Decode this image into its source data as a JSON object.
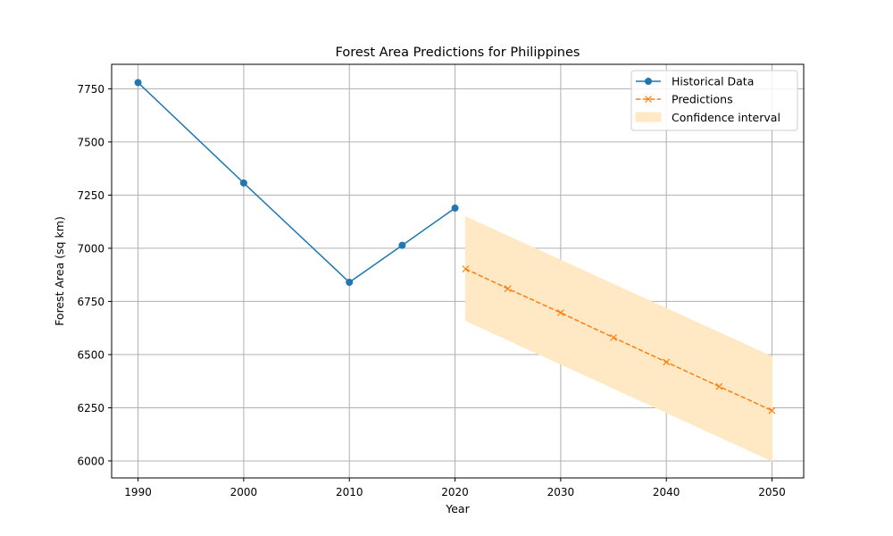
{
  "chart_data": {
    "type": "line",
    "title": "Forest Area Predictions for Philippines",
    "xlabel": "Year",
    "ylabel": "Forest Area (sq km)",
    "xlim": [
      1987.5,
      2053
    ],
    "ylim": [
      5920,
      7865
    ],
    "xticks": [
      1990,
      2000,
      2010,
      2020,
      2030,
      2040,
      2050
    ],
    "yticks": [
      6000,
      6250,
      6500,
      6750,
      7000,
      7250,
      7500,
      7750
    ],
    "grid": true,
    "legend_position": "top-right",
    "series": [
      {
        "name": "Historical Data",
        "style": "solid",
        "marker": "circle",
        "color": "#1f77b4",
        "x": [
          1990,
          2000,
          2010,
          2015,
          2020
        ],
        "y": [
          7779,
          7307,
          6840,
          7014,
          7189
        ]
      },
      {
        "name": "Predictions",
        "style": "dashed",
        "marker": "x",
        "color": "#ff7f0e",
        "x": [
          2021,
          2025,
          2030,
          2035,
          2040,
          2045,
          2050
        ],
        "y": [
          6903,
          6810,
          6697,
          6580,
          6465,
          6350,
          6237
        ]
      }
    ],
    "confidence_interval": {
      "name": "Confidence interval",
      "color": "#ffe9c4",
      "x": [
        2021,
        2050
      ],
      "lower": [
        6660,
        6000
      ],
      "upper": [
        7148,
        6490
      ]
    }
  }
}
